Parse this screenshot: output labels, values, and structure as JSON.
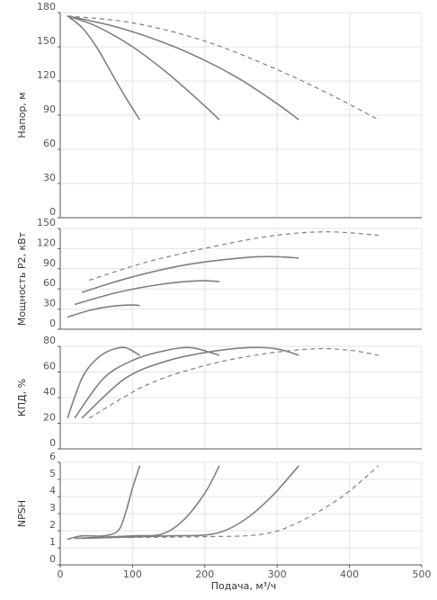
{
  "chart_data": [
    {
      "id": "head",
      "type": "line",
      "ylabel": "Напор, м",
      "xlim": [
        0,
        500
      ],
      "ylim": [
        0,
        180
      ],
      "yticks": [
        0,
        30,
        60,
        90,
        120,
        150,
        180
      ],
      "grid": true,
      "series": [
        {
          "line_style": "solid",
          "x": [
            10,
            30,
            50,
            70,
            90,
            110
          ],
          "y": [
            177,
            167,
            150,
            128,
            106,
            86
          ]
        },
        {
          "line_style": "solid",
          "x": [
            10,
            50,
            100,
            150,
            200,
            220
          ],
          "y": [
            177,
            168,
            150,
            126,
            98,
            86
          ]
        },
        {
          "line_style": "solid",
          "x": [
            10,
            80,
            150,
            200,
            250,
            300,
            330
          ],
          "y": [
            177,
            167,
            152,
            138,
            121,
            100,
            86
          ]
        },
        {
          "line_style": "dashed",
          "x": [
            10,
            100,
            200,
            300,
            380,
            440
          ],
          "y": [
            177,
            171,
            155,
            130,
            106,
            86
          ]
        }
      ]
    },
    {
      "id": "power",
      "type": "line",
      "ylabel": "Мощность P2, кВт",
      "xlim": [
        0,
        500
      ],
      "ylim": [
        0,
        150
      ],
      "yticks": [
        0,
        30,
        60,
        90,
        120,
        150
      ],
      "grid": true,
      "series": [
        {
          "line_style": "solid",
          "x": [
            10,
            40,
            70,
            100,
            110
          ],
          "y": [
            18,
            28,
            34,
            36,
            35
          ]
        },
        {
          "line_style": "solid",
          "x": [
            20,
            80,
            140,
            190,
            220
          ],
          "y": [
            37,
            55,
            67,
            72,
            71
          ]
        },
        {
          "line_style": "solid",
          "x": [
            30,
            100,
            180,
            260,
            300,
            330
          ],
          "y": [
            55,
            78,
            97,
            107,
            108,
            106
          ]
        },
        {
          "line_style": "dashed",
          "x": [
            40,
            120,
            220,
            300,
            370,
            440
          ],
          "y": [
            73,
            100,
            125,
            140,
            145,
            140
          ]
        }
      ]
    },
    {
      "id": "efficiency",
      "type": "line",
      "ylabel": "КПД, %",
      "xlim": [
        0,
        500
      ],
      "ylim": [
        0,
        80
      ],
      "yticks": [
        0,
        20,
        40,
        60,
        80
      ],
      "grid": true,
      "series": [
        {
          "line_style": "solid",
          "x": [
            10,
            30,
            50,
            70,
            90,
            110
          ],
          "y": [
            24,
            55,
            70,
            77,
            79,
            73
          ]
        },
        {
          "line_style": "solid",
          "x": [
            20,
            60,
            100,
            140,
            180,
            220
          ],
          "y": [
            24,
            55,
            69,
            76,
            79,
            73
          ]
        },
        {
          "line_style": "solid",
          "x": [
            30,
            90,
            150,
            210,
            260,
            300,
            330
          ],
          "y": [
            24,
            55,
            69,
            76,
            79,
            78,
            73
          ]
        },
        {
          "line_style": "dashed",
          "x": [
            40,
            120,
            200,
            280,
            350,
            400,
            440
          ],
          "y": [
            24,
            50,
            65,
            74,
            78,
            77,
            73
          ]
        }
      ]
    },
    {
      "id": "npsh",
      "type": "line",
      "ylabel": "NPSH",
      "xlabel": "Подача, м³/ч",
      "xlim": [
        0,
        500
      ],
      "xticks": [
        0,
        100,
        200,
        300,
        400,
        500
      ],
      "ylim": [
        0,
        6
      ],
      "yticks": [
        0,
        1,
        2,
        3,
        4,
        5,
        6
      ],
      "grid": true,
      "series": [
        {
          "line_style": "solid",
          "x": [
            10,
            30,
            60,
            80,
            90,
            100,
            110
          ],
          "y": [
            1.5,
            1.7,
            1.7,
            2.0,
            3.0,
            4.5,
            5.8
          ]
        },
        {
          "line_style": "solid",
          "x": [
            20,
            100,
            140,
            170,
            200,
            220
          ],
          "y": [
            1.55,
            1.7,
            1.8,
            2.6,
            4.2,
            5.8
          ]
        },
        {
          "line_style": "solid",
          "x": [
            30,
            150,
            210,
            250,
            290,
            330
          ],
          "y": [
            1.55,
            1.7,
            1.8,
            2.5,
            3.9,
            5.8
          ]
        },
        {
          "line_style": "dashed",
          "x": [
            40,
            200,
            280,
            330,
            390,
            440
          ],
          "y": [
            1.6,
            1.65,
            1.8,
            2.5,
            4.0,
            5.8
          ]
        }
      ]
    }
  ]
}
